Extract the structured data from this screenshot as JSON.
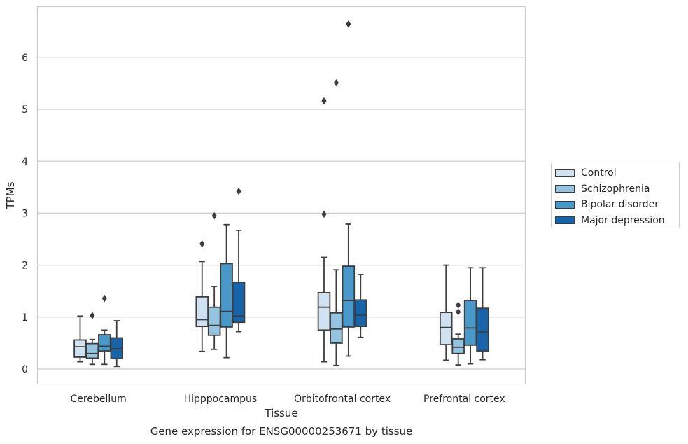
{
  "chart_data": {
    "type": "box",
    "xlabel": "Tissue",
    "ylabel": "TPMs",
    "caption": "Gene expression for ENSG00000253671 by tissue",
    "ylim": [
      -0.28,
      7.0
    ],
    "yticks": [
      0,
      1,
      2,
      3,
      4,
      5,
      6
    ],
    "grid": "horizontal",
    "legend_position": "right",
    "categories": [
      "Cerebellum",
      "Hipppocampus",
      "Orbitofrontal cortex",
      "Prefrontal cortex"
    ],
    "series": [
      {
        "name": "Control",
        "color": "#d0e1f2",
        "boxes": [
          {
            "min": 0.14,
            "q1": 0.23,
            "median": 0.43,
            "q3": 0.56,
            "max": 1.02,
            "outliers": []
          },
          {
            "min": 0.34,
            "q1": 0.82,
            "median": 0.95,
            "q3": 1.39,
            "max": 2.07,
            "outliers": [
              2.41
            ]
          },
          {
            "min": 0.14,
            "q1": 0.75,
            "median": 1.19,
            "q3": 1.47,
            "max": 2.15,
            "outliers": [
              2.98,
              5.16
            ]
          },
          {
            "min": 0.17,
            "q1": 0.47,
            "median": 0.8,
            "q3": 1.09,
            "max": 2.0,
            "outliers": []
          }
        ]
      },
      {
        "name": "Schizophrenia",
        "color": "#94c4df",
        "boxes": [
          {
            "min": 0.09,
            "q1": 0.21,
            "median": 0.3,
            "q3": 0.49,
            "max": 0.57,
            "outliers": [
              1.03
            ]
          },
          {
            "min": 0.38,
            "q1": 0.65,
            "median": 0.84,
            "q3": 1.19,
            "max": 1.59,
            "outliers": [
              2.95
            ]
          },
          {
            "min": 0.07,
            "q1": 0.5,
            "median": 0.77,
            "q3": 1.08,
            "max": 1.91,
            "outliers": [
              5.51
            ]
          },
          {
            "min": 0.08,
            "q1": 0.3,
            "median": 0.42,
            "q3": 0.58,
            "max": 0.67,
            "outliers": [
              1.1,
              1.23
            ]
          }
        ]
      },
      {
        "name": "Bipolar disorder",
        "color": "#4a98c9",
        "boxes": [
          {
            "min": 0.09,
            "q1": 0.35,
            "median": 0.44,
            "q3": 0.66,
            "max": 0.75,
            "outliers": [
              1.36
            ]
          },
          {
            "min": 0.22,
            "q1": 0.81,
            "median": 1.11,
            "q3": 2.03,
            "max": 2.78,
            "outliers": []
          },
          {
            "min": 0.25,
            "q1": 0.81,
            "median": 1.32,
            "q3": 1.98,
            "max": 2.79,
            "outliers": [
              6.64
            ]
          },
          {
            "min": 0.1,
            "q1": 0.46,
            "median": 0.79,
            "q3": 1.32,
            "max": 1.95,
            "outliers": []
          }
        ]
      },
      {
        "name": "Major depression",
        "color": "#1764ab",
        "boxes": [
          {
            "min": 0.05,
            "q1": 0.2,
            "median": 0.39,
            "q3": 0.6,
            "max": 0.93,
            "outliers": []
          },
          {
            "min": 0.72,
            "q1": 0.9,
            "median": 1.02,
            "q3": 1.67,
            "max": 2.67,
            "outliers": [
              3.42
            ]
          },
          {
            "min": 0.61,
            "q1": 0.82,
            "median": 1.04,
            "q3": 1.33,
            "max": 1.82,
            "outliers": []
          },
          {
            "min": 0.18,
            "q1": 0.35,
            "median": 0.71,
            "q3": 1.17,
            "max": 1.95,
            "outliers": []
          }
        ]
      }
    ]
  }
}
